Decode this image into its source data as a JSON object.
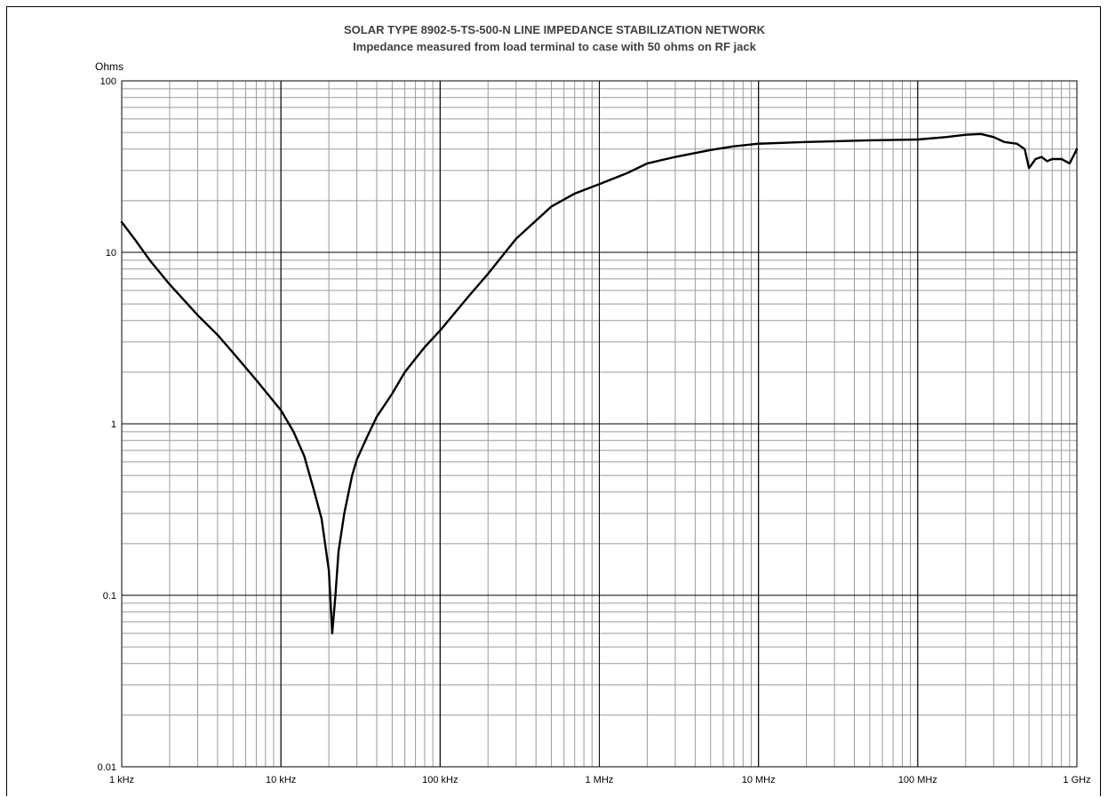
{
  "chart_data": {
    "type": "line",
    "title": "SOLAR TYPE 8902-5-TS-500-N LINE IMPEDANCE STABILIZATION NETWORK",
    "subtitle": "Impedance measured from load terminal to case with 50 ohms on RF jack",
    "ylabel": "Ohms",
    "xlabel": "",
    "x_scale": "log",
    "y_scale": "log",
    "xlim": [
      1000,
      1000000000
    ],
    "ylim": [
      0.01,
      100
    ],
    "grid": true,
    "x_ticks": [
      {
        "value": 1000,
        "label": "1 kHz"
      },
      {
        "value": 10000,
        "label": "10 kHz"
      },
      {
        "value": 100000,
        "label": "100 kHz"
      },
      {
        "value": 1000000,
        "label": "1 MHz"
      },
      {
        "value": 10000000,
        "label": "10 MHz"
      },
      {
        "value": 100000000,
        "label": "100 MHz"
      },
      {
        "value": 1000000000,
        "label": "1 GHz"
      }
    ],
    "y_ticks": [
      {
        "value": 100,
        "label": "100"
      },
      {
        "value": 10,
        "label": "10"
      },
      {
        "value": 1,
        "label": "1"
      },
      {
        "value": 0.1,
        "label": "0.1"
      },
      {
        "value": 0.01,
        "label": "0.01"
      }
    ],
    "series": [
      {
        "color": "#000000",
        "x": [
          1000,
          1200,
          1500,
          2000,
          3000,
          4000,
          5000,
          7000,
          10000,
          12000,
          14000,
          16000,
          18000,
          20000,
          21000,
          22000,
          23000,
          25000,
          28000,
          30000,
          35000,
          40000,
          50000,
          60000,
          70000,
          80000,
          100000,
          150000,
          200000,
          300000,
          500000,
          700000,
          1000000,
          1500000,
          2000000,
          3000000,
          5000000,
          7000000,
          10000000,
          20000000,
          50000000,
          100000000,
          150000000,
          200000000,
          250000000,
          300000000,
          350000000,
          420000000,
          470000000,
          500000000,
          550000000,
          600000000,
          650000000,
          700000000,
          800000000,
          900000000,
          1000000000
        ],
        "y": [
          15,
          12,
          9,
          6.5,
          4.3,
          3.3,
          2.6,
          1.8,
          1.2,
          0.9,
          0.65,
          0.42,
          0.28,
          0.14,
          0.06,
          0.1,
          0.18,
          0.3,
          0.5,
          0.62,
          0.85,
          1.1,
          1.5,
          2,
          2.4,
          2.8,
          3.5,
          5.5,
          7.5,
          12,
          18.5,
          22,
          25,
          29,
          33,
          36,
          39.5,
          41.5,
          43,
          44,
          45,
          45.5,
          47,
          48.5,
          49,
          47,
          44,
          43,
          40,
          31,
          35,
          36,
          34,
          35,
          35,
          33,
          40
        ]
      }
    ]
  }
}
